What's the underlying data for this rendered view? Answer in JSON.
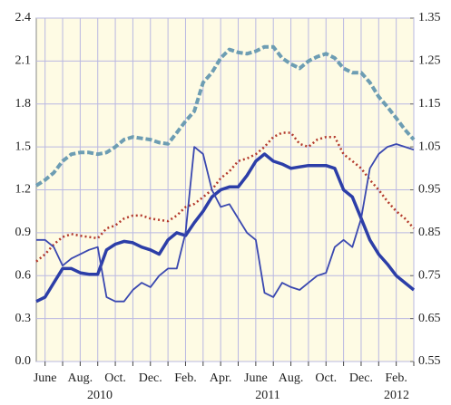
{
  "chart_data": {
    "type": "line",
    "categories": [
      null,
      "June",
      null,
      null,
      null,
      "Aug.",
      null,
      null,
      null,
      "Oct.",
      null,
      null,
      null,
      "Dec.",
      null,
      null,
      null,
      "Feb.",
      null,
      null,
      null,
      "Apr.",
      null,
      null,
      null,
      "June",
      null,
      null,
      null,
      "Aug.",
      null,
      null,
      null,
      "Oct.",
      null,
      null,
      null,
      "Dec.",
      null,
      null,
      null,
      "Feb.",
      null,
      null
    ],
    "years": [
      "2010",
      "2011",
      "2012"
    ],
    "ylim": [
      0,
      2.4
    ],
    "yticks": [
      {
        "value": 0,
        "label": "0.0"
      },
      0.3,
      0.6,
      0.9,
      1.2,
      1.5,
      1.8,
      2.1,
      2.4
    ],
    "y2lim": [
      0.55,
      1.35
    ],
    "y2ticks": [
      0.55,
      0.65,
      0.75,
      0.85,
      0.95,
      1.05,
      1.15,
      1.25,
      1.35
    ],
    "grid": true,
    "series": [
      {
        "color": "#6d9db3",
        "line_style": "dashed",
        "axis": "y2",
        "values": [
          0.96,
          0.973,
          0.99,
          1.017,
          1.033,
          1.037,
          1.037,
          1.033,
          1.037,
          1.05,
          1.067,
          1.073,
          1.07,
          1.067,
          1.06,
          1.057,
          1.083,
          1.11,
          1.133,
          1.2,
          1.223,
          1.257,
          1.277,
          1.27,
          1.267,
          1.273,
          1.283,
          1.283,
          1.257,
          1.243,
          1.233,
          1.25,
          1.26,
          1.267,
          1.257,
          1.233,
          1.223,
          1.223,
          1.2,
          1.167,
          1.143,
          1.117,
          1.09,
          1.067
        ]
      },
      {
        "color": "#b3392c",
        "line_style": "dotted",
        "axis": "y2",
        "values": [
          0.783,
          0.8,
          0.823,
          0.84,
          0.847,
          0.843,
          0.84,
          0.837,
          0.86,
          0.867,
          0.883,
          0.89,
          0.89,
          0.883,
          0.88,
          0.877,
          0.89,
          0.91,
          0.917,
          0.933,
          0.95,
          0.977,
          0.993,
          1.017,
          1.023,
          1.033,
          1.05,
          1.073,
          1.083,
          1.083,
          1.057,
          1.05,
          1.067,
          1.073,
          1.073,
          1.033,
          1.017,
          1.0,
          0.973,
          0.95,
          0.923,
          0.9,
          0.883,
          0.86
        ]
      },
      {
        "color": "#2c3ea8",
        "line_style": "thick",
        "values": [
          0.42,
          0.45,
          0.55,
          0.65,
          0.65,
          0.62,
          0.61,
          0.61,
          0.78,
          0.82,
          0.84,
          0.83,
          0.8,
          0.78,
          0.75,
          0.85,
          0.9,
          0.88,
          0.97,
          1.05,
          1.15,
          1.2,
          1.22,
          1.22,
          1.3,
          1.4,
          1.45,
          1.4,
          1.38,
          1.35,
          1.36,
          1.37,
          1.37,
          1.37,
          1.35,
          1.2,
          1.15,
          1.0,
          0.85,
          0.75,
          0.68,
          0.6,
          0.55,
          0.5
        ]
      },
      {
        "color": "#3a48b0",
        "line_style": "thin",
        "values": [
          0.85,
          0.85,
          0.8,
          0.67,
          0.72,
          0.75,
          0.78,
          0.8,
          0.45,
          0.42,
          0.42,
          0.5,
          0.55,
          0.52,
          0.6,
          0.65,
          0.65,
          0.9,
          1.5,
          1.45,
          1.2,
          1.08,
          1.1,
          1.0,
          0.9,
          0.85,
          0.48,
          0.45,
          0.55,
          0.52,
          0.5,
          0.55,
          0.6,
          0.62,
          0.8,
          0.85,
          0.8,
          1.0,
          1.35,
          1.45,
          1.5,
          1.52,
          1.5,
          1.48
        ]
      }
    ]
  }
}
